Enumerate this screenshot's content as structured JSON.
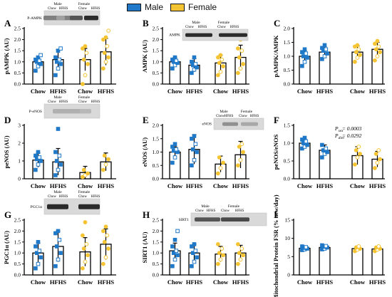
{
  "legend": {
    "male_label": "Male",
    "female_label": "Female",
    "male_color": "#1f78c8",
    "female_color": "#f5c433"
  },
  "colors": {
    "male": "#1f78c8",
    "female": "#f5c433",
    "axis": "#000000",
    "blot_dark": "#2b2b2b"
  },
  "chart_data": [
    {
      "type": "bar",
      "panel": "A",
      "ylabel": "pAMPK (AU)",
      "ylim": [
        0,
        2.5
      ],
      "yticks": [
        0,
        0.5,
        1.0,
        1.5,
        2.0,
        2.5
      ],
      "ytick_labels": [
        "0.0",
        "0.5",
        "1.0",
        "1.5",
        "2.0",
        "2.5"
      ],
      "categories": [
        "Chow",
        "HFHS",
        "Chow",
        "HFHS"
      ],
      "groups": [
        "Male",
        "Male",
        "Female",
        "Female"
      ],
      "values": [
        1.0,
        1.1,
        1.1,
        1.45
      ],
      "errors": [
        0.25,
        0.45,
        0.5,
        0.6
      ],
      "points": [
        [
          0.6,
          0.8,
          0.9,
          1.0,
          1.05,
          1.1,
          1.2,
          1.3
        ],
        [
          0.4,
          0.7,
          0.9,
          1.0,
          1.1,
          1.2,
          1.5,
          1.6
        ],
        [
          0.0,
          0.4,
          0.9,
          1.1,
          1.4,
          1.6,
          1.7
        ],
        [
          0.7,
          1.0,
          1.2,
          1.4,
          1.7,
          2.0,
          2.1,
          2.4
        ]
      ],
      "blot": {
        "label": "P-AMPK",
        "header_male": "Male",
        "header_female": "Female",
        "lanes": [
          "Chow",
          "HFHS",
          "Chow",
          "HFHS"
        ]
      }
    },
    {
      "type": "bar",
      "panel": "B",
      "ylabel": "AMPK (AU)",
      "ylim": [
        0,
        2.5
      ],
      "yticks": [
        0,
        0.5,
        1.0,
        1.5,
        2.0,
        2.5
      ],
      "ytick_labels": [
        "0.0",
        "0.5",
        "1.0",
        "1.5",
        "2.0",
        "2.5"
      ],
      "categories": [
        "Chow",
        "HFHS",
        "Chow",
        "HFHS"
      ],
      "groups": [
        "Male",
        "Male",
        "Female",
        "Female"
      ],
      "values": [
        1.0,
        0.85,
        0.95,
        1.2
      ],
      "errors": [
        0.2,
        0.3,
        0.35,
        0.55
      ],
      "points": [
        [
          0.7,
          0.85,
          0.95,
          1.0,
          1.05,
          1.1,
          1.2
        ],
        [
          0.5,
          0.65,
          0.75,
          0.85,
          0.9,
          1.0,
          1.2
        ],
        [
          0.4,
          0.55,
          0.8,
          0.95,
          1.1,
          1.2,
          1.3
        ],
        [
          0.5,
          0.7,
          0.9,
          1.2,
          1.5,
          1.6,
          2.0
        ]
      ],
      "blot": {
        "label": "AMPK",
        "header_male": "Male",
        "header_female": "Female",
        "lanes": [
          "Chow",
          "HFHS",
          "Chow",
          "HFHS"
        ]
      }
    },
    {
      "type": "bar",
      "panel": "C",
      "ylabel": "pAMPK/AMPK",
      "ylim": [
        0,
        2.0
      ],
      "yticks": [
        0,
        0.5,
        1.0,
        1.5,
        2.0
      ],
      "ytick_labels": [
        "0.0",
        "0.5",
        "1.0",
        "1.5",
        "2.0"
      ],
      "categories": [
        "Chow",
        "HFHS",
        "Chow",
        "HFHS"
      ],
      "groups": [
        "Male",
        "Male",
        "Female",
        "Female"
      ],
      "values": [
        1.0,
        1.15,
        1.15,
        1.25
      ],
      "errors": [
        0.2,
        0.2,
        0.22,
        0.25
      ],
      "points": [
        [
          0.65,
          0.8,
          0.95,
          1.0,
          1.1,
          1.15,
          1.25
        ],
        [
          0.9,
          1.0,
          1.1,
          1.2,
          1.25,
          1.3,
          1.4
        ],
        [
          0.8,
          0.95,
          1.05,
          1.15,
          1.25,
          1.35,
          1.4
        ],
        [
          0.85,
          1.0,
          1.15,
          1.25,
          1.35,
          1.45,
          1.55
        ]
      ]
    },
    {
      "type": "bar",
      "panel": "D",
      "ylabel": "peNOS (AU)",
      "ylim": [
        0,
        3
      ],
      "yticks": [
        0,
        1,
        2,
        3
      ],
      "ytick_labels": [
        "0",
        "1",
        "2",
        "3"
      ],
      "categories": [
        "Chow",
        "HFHS",
        "Chow",
        "HFHS"
      ],
      "groups": [
        "Male",
        "Male",
        "Female",
        "Female"
      ],
      "values": [
        1.05,
        0.95,
        0.35,
        0.95
      ],
      "errors": [
        0.4,
        0.75,
        0.35,
        0.5
      ],
      "points": [
        [
          0.5,
          0.8,
          1.0,
          1.1,
          1.2,
          1.3,
          1.5
        ],
        [
          0.2,
          0.5,
          0.8,
          1.0,
          1.3,
          1.5,
          2.8
        ],
        [
          0.1,
          0.2,
          0.3,
          0.5
        ],
        [
          0.5,
          0.8,
          1.1,
          1.3
        ]
      ],
      "blot": {
        "label": "P-eNOS",
        "header_male": "Male",
        "header_female": "Female",
        "lanes": [
          "Chow",
          "HFHS",
          "Chow",
          "HFHS"
        ]
      }
    },
    {
      "type": "bar",
      "panel": "E",
      "ylabel": "eNOS (AU)",
      "ylim": [
        0,
        2.0
      ],
      "yticks": [
        0,
        0.5,
        1.0,
        1.5,
        2.0
      ],
      "ytick_labels": [
        "0.0",
        "0.5",
        "1.0",
        "1.5",
        "2.0"
      ],
      "categories": [
        "Chow",
        "HFHS",
        "Chow",
        "HFHS"
      ],
      "groups": [
        "Male",
        "Male",
        "Female",
        "Female"
      ],
      "values": [
        1.0,
        1.1,
        0.55,
        0.9
      ],
      "errors": [
        0.2,
        0.55,
        0.3,
        0.5
      ],
      "points": [
        [
          0.6,
          0.8,
          1.0,
          1.05,
          1.1,
          1.2,
          1.3
        ],
        [
          0.5,
          0.7,
          1.0,
          1.1,
          1.3,
          1.5,
          1.6
        ],
        [
          0.2,
          0.4,
          0.6,
          0.8
        ],
        [
          0.5,
          0.7,
          1.0,
          1.2,
          1.3
        ]
      ],
      "blot": {
        "label": "eNOS",
        "header_male": "Male",
        "header_female": "Female",
        "lanes": [
          "Chow",
          "HFHS",
          "Chow",
          "HFHS"
        ]
      }
    },
    {
      "type": "bar",
      "panel": "F",
      "ylabel": "peNOS/eNOS",
      "ylim": [
        0,
        1.5
      ],
      "yticks": [
        0,
        0.5,
        1.0,
        1.5
      ],
      "ytick_labels": [
        "0.0",
        "0.5",
        "1.0",
        "1.5"
      ],
      "categories": [
        "Chow",
        "HFHS",
        "Chow",
        "HFHS"
      ],
      "groups": [
        "Male",
        "Male",
        "Female",
        "Female"
      ],
      "values": [
        1.0,
        0.8,
        0.65,
        0.55
      ],
      "errors": [
        0.12,
        0.15,
        0.25,
        0.22
      ],
      "points": [
        [
          0.85,
          0.9,
          0.95,
          1.0,
          1.05,
          1.1,
          1.15
        ],
        [
          0.6,
          0.7,
          0.75,
          0.8,
          0.85,
          0.95
        ],
        [
          0.4,
          0.6,
          0.7,
          0.8,
          0.9
        ],
        [
          0.3,
          0.45,
          0.55,
          0.7,
          0.8
        ]
      ],
      "stats": [
        {
          "label": "P",
          "sub": "sex",
          "sep": " = ",
          "value": "0.0003"
        },
        {
          "label": "P",
          "sub": "diet",
          "sep": " = ",
          "value": "0.0292"
        }
      ]
    },
    {
      "type": "bar",
      "panel": "G",
      "ylabel": "PGC1α (AU)",
      "ylim": [
        0,
        2.5
      ],
      "yticks": [
        0,
        0.5,
        1.0,
        1.5,
        2.0,
        2.5
      ],
      "ytick_labels": [
        "0.0",
        "0.5",
        "1.0",
        "1.5",
        "2.0",
        "2.5"
      ],
      "categories": [
        "Chow",
        "HFHS",
        "Chow",
        "HFHS"
      ],
      "groups": [
        "Male",
        "Male",
        "Female",
        "Female"
      ],
      "values": [
        1.0,
        1.3,
        1.05,
        1.4
      ],
      "errors": [
        0.45,
        0.7,
        0.65,
        0.7
      ],
      "points": [
        [
          0.3,
          0.5,
          0.8,
          1.0,
          1.1,
          1.3,
          1.5
        ],
        [
          0.4,
          0.7,
          1.0,
          1.3,
          1.6,
          1.9,
          2.0
        ],
        [
          0.3,
          0.6,
          0.9,
          1.2,
          1.4,
          1.8,
          2.4
        ],
        [
          0.5,
          0.8,
          1.2,
          1.5,
          1.8,
          2.0,
          2.2
        ]
      ],
      "blot": {
        "label": "PGC1α",
        "header_male": "Male",
        "header_female": "Female",
        "lanes": [
          "Chow",
          "HFHS",
          "Chow",
          "HFHS"
        ]
      }
    },
    {
      "type": "bar",
      "panel": "H",
      "ylabel": "SIRT1 (AU)",
      "ylim": [
        0,
        2.5
      ],
      "yticks": [
        0,
        0.5,
        1.0,
        1.5,
        2.0,
        2.5
      ],
      "ytick_labels": [
        "0.0",
        "0.5",
        "1.0",
        "1.5",
        "2.0",
        "2.5"
      ],
      "categories": [
        "Chow",
        "HFHS",
        "Chow",
        "HFHS"
      ],
      "groups": [
        "Male",
        "Male",
        "Female",
        "Female"
      ],
      "values": [
        1.1,
        1.0,
        0.95,
        1.0
      ],
      "errors": [
        0.35,
        0.4,
        0.35,
        0.35
      ],
      "points": [
        [
          0.4,
          0.7,
          0.9,
          1.0,
          1.1,
          1.3,
          1.6,
          2.0
        ],
        [
          0.4,
          0.6,
          0.8,
          1.0,
          1.1,
          1.3,
          1.4
        ],
        [
          0.5,
          0.7,
          0.9,
          1.0,
          1.2,
          1.4
        ],
        [
          0.5,
          0.7,
          0.9,
          1.0,
          1.2,
          1.4
        ]
      ],
      "blot": {
        "label": "SIRT1",
        "header_male": "Male",
        "header_female": "Female",
        "lanes": [
          "Chow",
          "HFHS",
          "Chow",
          "HFHS"
        ]
      }
    },
    {
      "type": "bar",
      "panel": "I",
      "ylabel": "Mitochondrial Protein FSR (% new/day)",
      "ylim": [
        0,
        15
      ],
      "yticks": [
        0,
        5,
        10,
        15
      ],
      "ytick_labels": [
        "0",
        "5",
        "10",
        "15"
      ],
      "categories": [
        "Chow",
        "HFHS",
        "Chow",
        "HFHS"
      ],
      "groups": [
        "Male",
        "Male",
        "Female",
        "Female"
      ],
      "values": [
        7.3,
        7.5,
        7.2,
        7.1
      ],
      "errors": [
        0.5,
        0.5,
        0.7,
        0.7
      ],
      "points": [
        [
          6.8,
          7.0,
          7.2,
          7.4,
          7.6,
          7.8
        ],
        [
          7.0,
          7.2,
          7.5,
          7.7,
          7.9,
          8.1
        ],
        [
          6.5,
          6.9,
          7.2,
          7.5,
          7.8
        ],
        [
          6.5,
          6.9,
          7.2,
          7.5,
          7.8
        ]
      ]
    }
  ]
}
